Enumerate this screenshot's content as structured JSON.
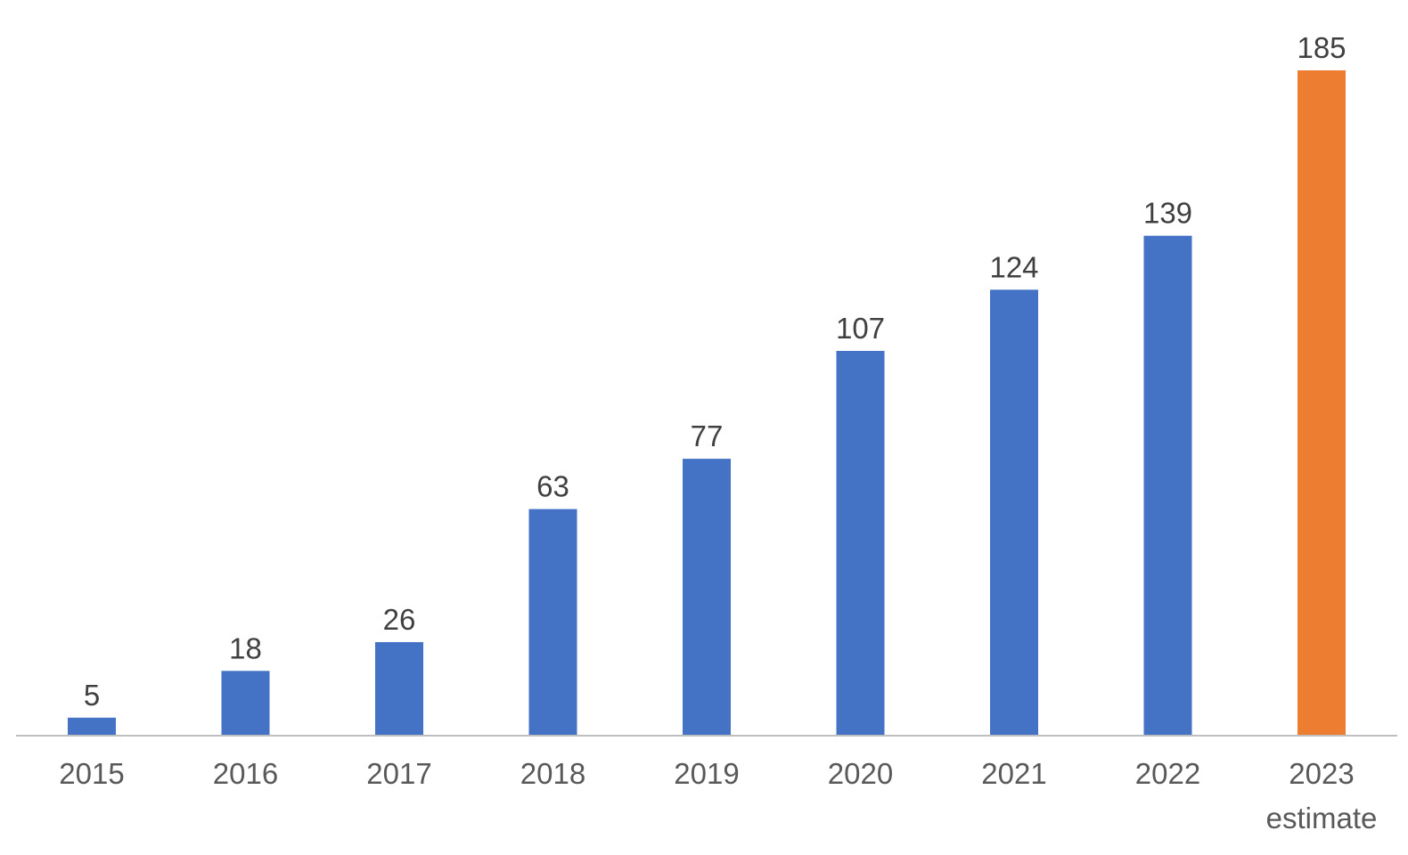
{
  "chart_data": {
    "type": "bar",
    "title": "",
    "xlabel": "",
    "ylabel": "",
    "categories": [
      [
        "2015"
      ],
      [
        "2016"
      ],
      [
        "2017"
      ],
      [
        "2018"
      ],
      [
        "2019"
      ],
      [
        "2020"
      ],
      [
        "2021"
      ],
      [
        "2022"
      ],
      [
        "2023",
        "estimate"
      ]
    ],
    "values": [
      5,
      18,
      26,
      63,
      77,
      107,
      124,
      139,
      185
    ],
    "data_labels": [
      "5",
      "18",
      "26",
      "63",
      "77",
      "107",
      "124",
      "139",
      "185"
    ],
    "bar_colors": [
      "#4472C4",
      "#4472C4",
      "#4472C4",
      "#4472C4",
      "#4472C4",
      "#4472C4",
      "#4472C4",
      "#4472C4",
      "#ED7D31"
    ],
    "ylim": [
      0,
      185
    ],
    "grid": false,
    "legend": "none"
  }
}
